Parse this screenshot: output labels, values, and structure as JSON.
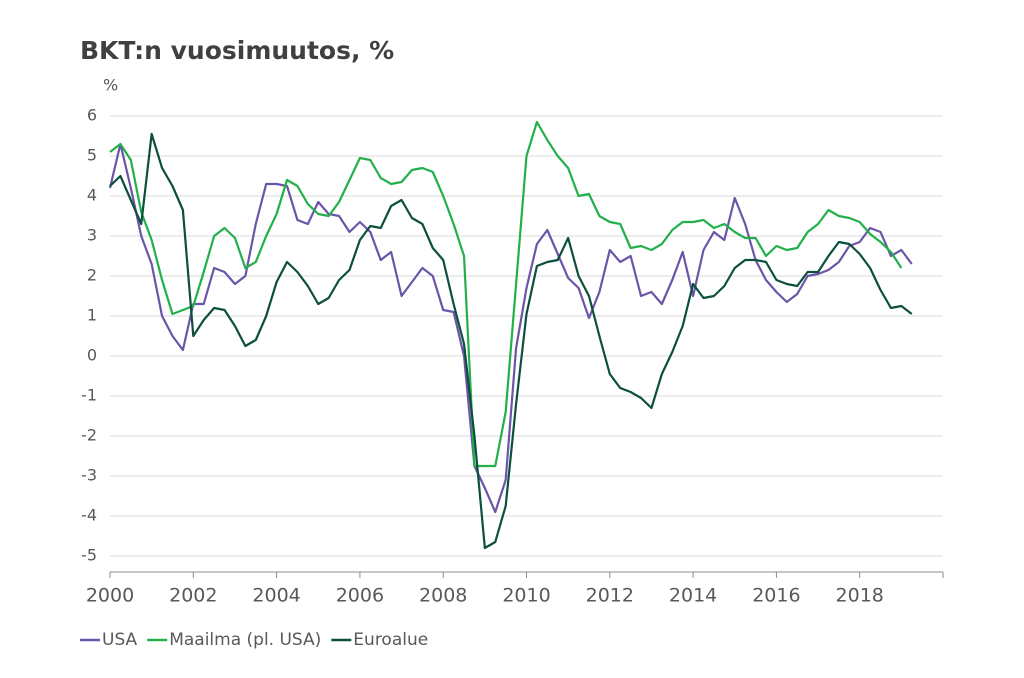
{
  "chart_data": {
    "type": "line",
    "title": "BKT:n vuosimuutos, %",
    "y_label": "%",
    "x": [
      2000,
      2000.25,
      2000.5,
      2000.75,
      2001,
      2001.25,
      2001.5,
      2001.75,
      2002,
      2002.25,
      2002.5,
      2002.75,
      2003,
      2003.25,
      2003.5,
      2003.75,
      2004,
      2004.25,
      2004.5,
      2004.75,
      2005,
      2005.25,
      2005.5,
      2005.75,
      2006,
      2006.25,
      2006.5,
      2006.75,
      2007,
      2007.25,
      2007.5,
      2007.75,
      2008,
      2008.25,
      2008.5,
      2008.75,
      2009,
      2009.25,
      2009.5,
      2009.75,
      2010,
      2010.25,
      2010.5,
      2010.75,
      2011,
      2011.25,
      2011.5,
      2011.75,
      2012,
      2012.25,
      2012.5,
      2012.75,
      2013,
      2013.25,
      2013.5,
      2013.75,
      2014,
      2014.25,
      2014.5,
      2014.75,
      2015,
      2015.25,
      2015.5,
      2015.75,
      2016,
      2016.25,
      2016.5,
      2016.75,
      2017,
      2017.25,
      2017.5,
      2017.75,
      2018,
      2018.25,
      2018.5,
      2018.75,
      2019,
      2019.25
    ],
    "series": [
      {
        "name": "USA",
        "color": "#6b55a8",
        "values": [
          4.2,
          5.3,
          4.2,
          3.0,
          2.3,
          1.0,
          0.5,
          0.15,
          1.3,
          1.3,
          2.2,
          2.1,
          1.8,
          2.0,
          3.3,
          4.3,
          4.3,
          4.25,
          3.4,
          3.3,
          3.85,
          3.55,
          3.5,
          3.1,
          3.35,
          3.1,
          2.4,
          2.6,
          1.5,
          1.85,
          2.2,
          2.0,
          1.15,
          1.1,
          0.0,
          -2.75,
          -3.3,
          -3.9,
          -3.1,
          0.2,
          1.7,
          2.8,
          3.15,
          2.55,
          1.95,
          1.7,
          0.95,
          1.6,
          2.65,
          2.35,
          2.5,
          1.5,
          1.6,
          1.3,
          1.9,
          2.6,
          1.5,
          2.65,
          3.1,
          2.9,
          3.95,
          3.3,
          2.4,
          1.9,
          1.6,
          1.35,
          1.55,
          2.0,
          2.05,
          2.15,
          2.35,
          2.75,
          2.85,
          3.2,
          3.1,
          2.5,
          2.65,
          2.3
        ]
      },
      {
        "name": "Maailma (pl. USA)",
        "color": "#22b04b",
        "values": [
          5.1,
          5.3,
          4.9,
          3.6,
          2.9,
          1.9,
          1.05,
          1.15,
          1.25,
          2.1,
          3.0,
          3.2,
          2.95,
          2.2,
          2.35,
          3.0,
          3.55,
          4.4,
          4.25,
          3.8,
          3.55,
          3.5,
          3.85,
          4.4,
          4.95,
          4.9,
          4.45,
          4.3,
          4.35,
          4.65,
          4.7,
          4.6,
          4.0,
          3.3,
          2.5,
          -2.75,
          -2.75,
          -2.75,
          -1.4,
          1.8,
          5.0,
          5.85,
          5.4,
          5.0,
          4.7,
          4.0,
          4.05,
          3.5,
          3.35,
          3.3,
          2.7,
          2.75,
          2.65,
          2.8,
          3.15,
          3.35,
          3.35,
          3.4,
          3.2,
          3.3,
          3.1,
          2.95,
          2.95,
          2.5,
          2.75,
          2.65,
          2.7,
          3.1,
          3.3,
          3.65,
          3.5,
          3.45,
          3.35,
          3.05,
          2.85,
          2.6,
          2.2,
          null
        ]
      },
      {
        "name": "Euroalue",
        "color": "#0c4f3e",
        "values": [
          4.25,
          4.5,
          3.9,
          3.3,
          5.55,
          4.7,
          4.25,
          3.65,
          0.5,
          0.9,
          1.2,
          1.15,
          0.75,
          0.25,
          0.4,
          1.0,
          1.85,
          2.35,
          2.1,
          1.75,
          1.3,
          1.45,
          1.9,
          2.15,
          2.9,
          3.25,
          3.2,
          3.75,
          3.9,
          3.45,
          3.3,
          2.7,
          2.4,
          1.3,
          0.3,
          -2.0,
          -4.8,
          -4.65,
          -3.75,
          -1.2,
          1.05,
          2.25,
          2.35,
          2.4,
          2.95,
          2.0,
          1.5,
          0.5,
          -0.45,
          -0.8,
          -0.9,
          -1.05,
          -1.3,
          -0.45,
          0.1,
          0.75,
          1.8,
          1.45,
          1.5,
          1.75,
          2.2,
          2.4,
          2.4,
          2.35,
          1.9,
          1.8,
          1.75,
          2.1,
          2.1,
          2.5,
          2.85,
          2.8,
          2.55,
          2.2,
          1.65,
          1.2,
          1.25,
          1.05
        ]
      }
    ],
    "xlim": [
      2000,
      2020
    ],
    "xticks": [
      2000,
      2002,
      2004,
      2006,
      2008,
      2010,
      2012,
      2014,
      2016,
      2018
    ],
    "ylim": [
      -5.4,
      6.4
    ],
    "yticks": [
      -5,
      -4,
      -3,
      -2,
      -1,
      0,
      1,
      2,
      3,
      4,
      5,
      6
    ],
    "grid": true,
    "legend": "bottom-left"
  }
}
